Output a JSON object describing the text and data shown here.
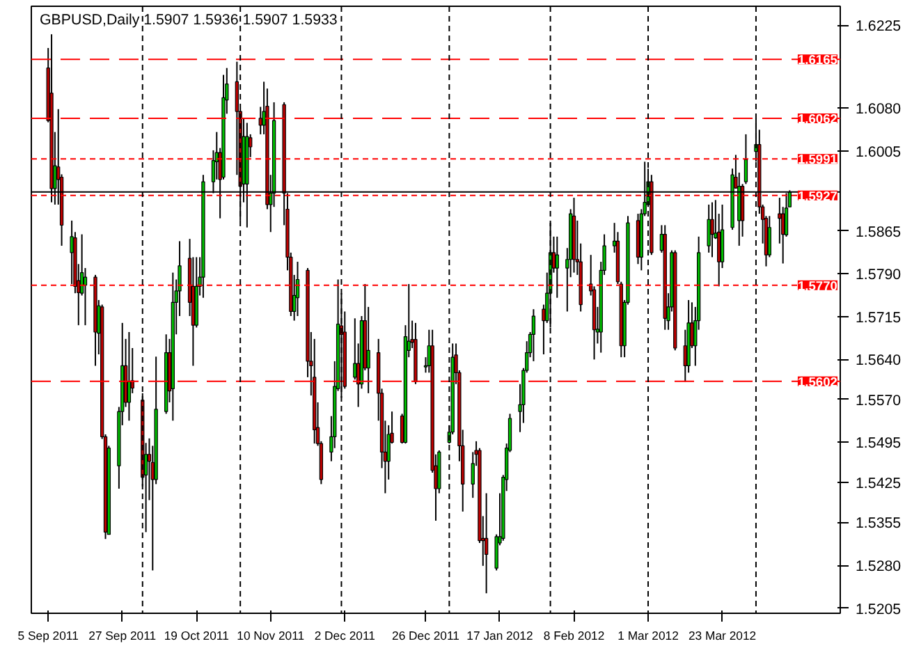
{
  "chart_data": {
    "type": "candlestick",
    "title": "GBPUSD,Daily  1.5907 1.5936 1.5907 1.5933",
    "x": [
      "2011-09-05",
      "2011-09-06",
      "2011-09-07",
      "2011-09-08",
      "2011-09-09",
      "2011-09-12",
      "2011-09-13",
      "2011-09-14",
      "2011-09-15",
      "2011-09-16",
      "2011-09-19",
      "2011-09-20",
      "2011-09-21",
      "2011-09-22",
      "2011-09-23",
      "2011-09-26",
      "2011-09-27",
      "2011-09-28",
      "2011-09-29",
      "2011-09-30",
      "2011-10-03",
      "2011-10-04",
      "2011-10-05",
      "2011-10-06",
      "2011-10-07",
      "2011-10-10",
      "2011-10-11",
      "2011-10-12",
      "2011-10-13",
      "2011-10-14",
      "2011-10-17",
      "2011-10-18",
      "2011-10-19",
      "2011-10-20",
      "2011-10-21",
      "2011-10-24",
      "2011-10-25",
      "2011-10-26",
      "2011-10-27",
      "2011-10-28",
      "2011-10-31",
      "2011-11-01",
      "2011-11-02",
      "2011-11-03",
      "2011-11-04",
      "2011-11-07",
      "2011-11-08",
      "2011-11-09",
      "2011-11-10",
      "2011-11-11",
      "2011-11-14",
      "2011-11-15",
      "2011-11-16",
      "2011-11-17",
      "2011-11-18",
      "2011-11-21",
      "2011-11-22",
      "2011-11-23",
      "2011-11-24",
      "2011-11-25",
      "2011-11-28",
      "2011-11-29",
      "2011-11-30",
      "2011-12-01",
      "2011-12-02",
      "2011-12-05",
      "2011-12-06",
      "2011-12-07",
      "2011-12-08",
      "2011-12-09",
      "2011-12-12",
      "2011-12-13",
      "2011-12-14",
      "2011-12-15",
      "2011-12-16",
      "2011-12-19",
      "2011-12-20",
      "2011-12-21",
      "2011-12-22",
      "2011-12-23",
      "2011-12-26",
      "2011-12-27",
      "2011-12-28",
      "2011-12-29",
      "2011-12-30",
      "2012-01-02",
      "2012-01-03",
      "2012-01-04",
      "2012-01-05",
      "2012-01-06",
      "2012-01-09",
      "2012-01-10",
      "2012-01-11",
      "2012-01-12",
      "2012-01-13",
      "2012-01-16",
      "2012-01-17",
      "2012-01-18",
      "2012-01-19",
      "2012-01-20",
      "2012-01-23",
      "2012-01-24",
      "2012-01-25",
      "2012-01-26",
      "2012-01-27",
      "2012-01-30",
      "2012-01-31",
      "2012-02-01",
      "2012-02-02",
      "2012-02-03",
      "2012-02-06",
      "2012-02-07",
      "2012-02-08",
      "2012-02-09",
      "2012-02-10",
      "2012-02-13",
      "2012-02-14",
      "2012-02-15",
      "2012-02-16",
      "2012-02-17",
      "2012-02-20",
      "2012-02-21",
      "2012-02-22",
      "2012-02-23",
      "2012-02-24",
      "2012-02-27",
      "2012-02-28",
      "2012-02-29",
      "2012-03-01",
      "2012-03-02",
      "2012-03-05",
      "2012-03-06",
      "2012-03-07",
      "2012-03-08",
      "2012-03-09",
      "2012-03-12",
      "2012-03-13",
      "2012-03-14",
      "2012-03-15",
      "2012-03-16",
      "2012-03-19",
      "2012-03-20",
      "2012-03-21",
      "2012-03-22",
      "2012-03-23",
      "2012-03-26",
      "2012-03-27",
      "2012-03-28",
      "2012-03-29",
      "2012-03-30",
      "2012-04-02",
      "2012-04-03",
      "2012-04-04",
      "2012-04-05",
      "2012-04-06",
      "2012-04-09",
      "2012-04-10",
      "2012-04-11",
      "2012-04-12"
    ],
    "ohlc": [
      [
        1.615,
        1.6185,
        1.6055,
        1.6058
      ],
      [
        1.6106,
        1.6209,
        1.5915,
        1.5939
      ],
      [
        1.5939,
        1.6038,
        1.5911,
        1.5979
      ],
      [
        1.5977,
        1.6078,
        1.5911,
        1.5955
      ],
      [
        1.5959,
        1.5964,
        1.5839,
        1.5875
      ],
      [
        1.5827,
        1.5883,
        1.5772,
        1.5855
      ],
      [
        1.5853,
        1.5863,
        1.5756,
        1.5768
      ],
      [
        1.5778,
        1.5807,
        1.57,
        1.5757
      ],
      [
        1.5756,
        1.5859,
        1.5752,
        1.5792
      ],
      [
        1.577,
        1.58,
        1.57,
        1.5784
      ],
      [
        1.5784,
        1.5788,
        1.5629,
        1.5688
      ],
      [
        1.5686,
        1.5744,
        1.5649,
        1.5734
      ],
      [
        1.5732,
        1.5736,
        1.5501,
        1.5505
      ],
      [
        1.5505,
        1.5509,
        1.5326,
        1.5338
      ],
      [
        1.5334,
        1.5489,
        1.5334,
        1.5485
      ],
      [
        1.5454,
        1.5557,
        1.5414,
        1.5549
      ],
      [
        1.5549,
        1.5704,
        1.5525,
        1.5629
      ],
      [
        1.5629,
        1.5676,
        1.5557,
        1.5565
      ],
      [
        1.5565,
        1.5688,
        1.5533,
        1.5601
      ],
      [
        1.5603,
        1.566,
        1.5581,
        1.559
      ],
      [
        1.5569,
        1.5581,
        1.5418,
        1.5434
      ],
      [
        1.5438,
        1.5494,
        1.5338,
        1.5474
      ],
      [
        1.5474,
        1.5502,
        1.5394,
        1.5462
      ],
      [
        1.546,
        1.5489,
        1.5271,
        1.543
      ],
      [
        1.543,
        1.5645,
        1.5422,
        1.5553
      ],
      [
        1.5549,
        1.5684,
        1.5545,
        1.5652
      ],
      [
        1.5652,
        1.5676,
        1.5565,
        1.5585
      ],
      [
        1.5589,
        1.5792,
        1.5533,
        1.574
      ],
      [
        1.574,
        1.578,
        1.5684,
        1.576
      ],
      [
        1.576,
        1.5847,
        1.5716,
        1.5804
      ],
      [
        1.5817,
        1.5851,
        1.5716,
        1.574
      ],
      [
        1.5768,
        1.5819,
        1.5629,
        1.57
      ],
      [
        1.57,
        1.5819,
        1.5696,
        1.5768
      ],
      [
        1.5768,
        1.5819,
        1.5752,
        1.5784
      ],
      [
        1.5784,
        1.5963,
        1.5748,
        1.5951
      ],
      [
        1.5951,
        1.6006,
        1.5931,
        1.5988
      ],
      [
        1.5986,
        1.6038,
        1.5955,
        1.6002
      ],
      [
        1.6002,
        1.601,
        1.5887,
        1.5955
      ],
      [
        1.5959,
        1.6138,
        1.5955,
        1.6098
      ],
      [
        1.6094,
        1.615,
        1.607,
        1.6122
      ],
      [
        1.6126,
        1.6161,
        1.5963,
        1.6074
      ],
      [
        1.6074,
        1.6078,
        1.5883,
        1.5943
      ],
      [
        1.5947,
        1.6062,
        1.5915,
        1.603
      ],
      [
        1.5947,
        1.6054,
        1.5871,
        1.603
      ],
      [
        1.6028,
        1.6034,
        1.5994,
        1.6012
      ],
      [
        1.6062,
        1.6082,
        1.6034,
        1.605
      ],
      [
        1.605,
        1.6126,
        1.6034,
        1.6074
      ],
      [
        1.6083,
        1.6114,
        1.5903,
        1.5911
      ],
      [
        1.5911,
        1.5963,
        1.5863,
        1.5931
      ],
      [
        1.5931,
        1.609,
        1.5907,
        1.6058
      ],
      [
        1.6086,
        1.609,
        1.5875,
        1.5931
      ],
      [
        1.5903,
        1.5931,
        1.5796,
        1.5819
      ],
      [
        1.5819,
        1.5827,
        1.5716,
        1.5724
      ],
      [
        1.5724,
        1.5788,
        1.5708,
        1.5752
      ],
      [
        1.5748,
        1.5811,
        1.5716,
        1.578
      ],
      [
        1.5796,
        1.58,
        1.5609,
        1.5637
      ],
      [
        1.5637,
        1.5688,
        1.5577,
        1.5629
      ],
      [
        1.5609,
        1.5676,
        1.5493,
        1.5517
      ],
      [
        1.5521,
        1.5565,
        1.5489,
        1.5493
      ],
      [
        1.5493,
        1.5497,
        1.5422,
        1.543
      ],
      [
        1.5478,
        1.5541,
        1.5462,
        1.5505
      ],
      [
        1.5505,
        1.5637,
        1.5485,
        1.5593
      ],
      [
        1.5589,
        1.578,
        1.5585,
        1.5702
      ],
      [
        1.5699,
        1.5756,
        1.5573,
        1.5684
      ],
      [
        1.5688,
        1.5724,
        1.5589,
        1.5593
      ],
      [
        1.5609,
        1.5712,
        1.5605,
        1.5633
      ],
      [
        1.5633,
        1.5668,
        1.5557,
        1.5597
      ],
      [
        1.5597,
        1.5716,
        1.5589,
        1.5708
      ],
      [
        1.5708,
        1.5772,
        1.5621,
        1.5625
      ],
      [
        1.5625,
        1.5732,
        1.5581,
        1.5656
      ],
      [
        1.5652,
        1.5676,
        1.5533,
        1.5581
      ],
      [
        1.5581,
        1.5589,
        1.545,
        1.5478
      ],
      [
        1.5478,
        1.5533,
        1.5406,
        1.5462
      ],
      [
        1.5462,
        1.5525,
        1.543,
        1.5509
      ],
      [
        1.5511,
        1.5549,
        1.5493,
        1.5495
      ],
      [
        1.5541,
        1.5545,
        1.5493,
        1.5495
      ],
      [
        1.5495,
        1.57,
        1.5493,
        1.568
      ],
      [
        1.5656,
        1.5772,
        1.5644,
        1.5672
      ],
      [
        1.5675,
        1.5708,
        1.566,
        1.567
      ],
      [
        1.5675,
        1.5704,
        1.5597,
        1.5601
      ],
      [
        1.5627,
        1.5644,
        1.5617,
        1.5629
      ],
      [
        1.5629,
        1.5692,
        1.5617,
        1.5664
      ],
      [
        1.5664,
        1.5692,
        1.5442,
        1.5446
      ],
      [
        1.5454,
        1.5474,
        1.5358,
        1.5414
      ],
      [
        1.5414,
        1.5481,
        1.5406,
        1.5478
      ],
      [
        1.5495,
        1.5525,
        1.5493,
        1.5513
      ],
      [
        1.5513,
        1.5668,
        1.5509,
        1.5644
      ],
      [
        1.5648,
        1.5668,
        1.5597,
        1.5617
      ],
      [
        1.5617,
        1.5621,
        1.5462,
        1.5489
      ],
      [
        1.5489,
        1.5517,
        1.5374,
        1.5422
      ],
      [
        1.5422,
        1.5478,
        1.5398,
        1.5458
      ],
      [
        1.5481,
        1.5497,
        1.5454,
        1.5474
      ],
      [
        1.5481,
        1.5485,
        1.5319,
        1.5323
      ],
      [
        1.5327,
        1.5366,
        1.5279,
        1.5323
      ],
      [
        1.5327,
        1.5406,
        1.5231,
        1.5299
      ],
      [
        1.5275,
        1.5334,
        1.5271,
        1.533
      ],
      [
        1.5319,
        1.5406,
        1.5315,
        1.533
      ],
      [
        1.5327,
        1.5438,
        1.5323,
        1.5434
      ],
      [
        1.543,
        1.5493,
        1.541,
        1.5485
      ],
      [
        1.5481,
        1.5545,
        1.5478,
        1.5537
      ],
      [
        1.5549,
        1.5597,
        1.5513,
        1.5561
      ],
      [
        1.5561,
        1.5625,
        1.5529,
        1.5621
      ],
      [
        1.5621,
        1.5672,
        1.5617,
        1.5652
      ],
      [
        1.5652,
        1.5688,
        1.5644,
        1.5684
      ],
      [
        1.5684,
        1.5728,
        1.5637,
        1.5716
      ],
      [
        1.5728,
        1.5736,
        1.5649,
        1.5708
      ],
      [
        1.5708,
        1.5792,
        1.5704,
        1.5756
      ],
      [
        1.5756,
        1.5879,
        1.5696,
        1.5827
      ],
      [
        1.5827,
        1.5855,
        1.5792,
        1.58
      ],
      [
        1.58,
        1.5855,
        1.5748,
        1.5823
      ],
      [
        1.58,
        1.5835,
        1.5724,
        1.5815
      ],
      [
        1.5815,
        1.5903,
        1.5784,
        1.5895
      ],
      [
        1.5891,
        1.5923,
        1.5792,
        1.5815
      ],
      [
        1.5815,
        1.5883,
        1.5788,
        1.5811
      ],
      [
        1.5811,
        1.5843,
        1.5724,
        1.5736
      ],
      [
        1.5772,
        1.5823,
        1.5752,
        1.576
      ],
      [
        1.5762,
        1.5768,
        1.564,
        1.5692
      ],
      [
        1.5688,
        1.5732,
        1.5668,
        1.5693
      ],
      [
        1.5688,
        1.5811,
        1.5652,
        1.5796
      ],
      [
        1.5796,
        1.5859,
        1.5788,
        1.5839
      ],
      [
        1.5839,
        1.5879,
        1.5827,
        1.5847
      ],
      [
        1.5847,
        1.5863,
        1.5772,
        1.5776
      ],
      [
        1.5772,
        1.5776,
        1.5644,
        1.5664
      ],
      [
        1.5664,
        1.5744,
        1.5644,
        1.574
      ],
      [
        1.574,
        1.5891,
        1.5736,
        1.5879
      ],
      [
        1.5883,
        1.5895,
        1.5807,
        1.5819
      ],
      [
        1.5819,
        1.5903,
        1.5796,
        1.5895
      ],
      [
        1.5895,
        1.5986,
        1.5891,
        1.5915
      ],
      [
        1.5911,
        1.5974,
        1.5907,
        1.5951
      ],
      [
        1.5951,
        1.5963,
        1.5823,
        1.5827
      ],
      [
        1.5831,
        1.5875,
        1.5827,
        1.5859
      ],
      [
        1.5859,
        1.5875,
        1.5692,
        1.5712
      ],
      [
        1.5708,
        1.5756,
        1.5692,
        1.5732
      ],
      [
        1.5732,
        1.5831,
        1.5724,
        1.5827
      ],
      [
        1.5827,
        1.5831,
        1.5656,
        1.566
      ],
      [
        1.5664,
        1.5692,
        1.5601,
        1.5629
      ],
      [
        1.5629,
        1.5744,
        1.5617,
        1.5704
      ],
      [
        1.5704,
        1.574,
        1.566,
        1.5664
      ],
      [
        1.5664,
        1.5732,
        1.5629,
        1.5708
      ],
      [
        1.5708,
        1.5855,
        1.5692,
        1.5827
      ],
      [
        1.5839,
        1.5911,
        1.5827,
        1.5885
      ],
      [
        1.5885,
        1.5915,
        1.5819,
        1.5859
      ],
      [
        1.5853,
        1.5919,
        1.5851,
        1.5861
      ],
      [
        1.5863,
        1.5895,
        1.5768,
        1.5811
      ],
      [
        1.5811,
        1.5911,
        1.58,
        1.5867
      ],
      [
        1.5871,
        1.5974,
        1.5867,
        1.5963
      ],
      [
        1.5959,
        1.5998,
        1.5939,
        1.594
      ],
      [
        1.5883,
        1.5967,
        1.5839,
        1.5943
      ],
      [
        1.5943,
        1.5947,
        1.5855,
        1.5883
      ],
      [
        1.5951,
        1.6034,
        1.5947,
        1.599
      ],
      [
        1.6004,
        1.6062,
        1.5986,
        1.6016
      ],
      [
        1.6016,
        1.6042,
        1.5895,
        1.5907
      ],
      [
        1.5907,
        1.5911,
        1.5843,
        1.5885
      ],
      [
        1.5887,
        1.5891,
        1.5803,
        1.5823
      ],
      [
        1.5823,
        1.5891,
        1.5819,
        1.5871
      ],
      [
        1.5895,
        1.5923,
        1.5843,
        1.5887
      ],
      [
        1.5895,
        1.5907,
        1.5808,
        1.5859
      ],
      [
        1.5858,
        1.5931,
        1.5855,
        1.5905
      ],
      [
        1.5907,
        1.5936,
        1.5907,
        1.5933
      ]
    ],
    "colors": [
      "#c00000",
      "#c00000",
      "#00c000",
      "#c00000",
      "#c00000",
      "#00c000",
      "#c00000",
      "#c00000",
      "#00c000",
      "#00c000",
      "#c00000",
      "#00c000",
      "#c00000",
      "#c00000",
      "#00c000",
      "#00c000",
      "#00c000",
      "#c00000",
      "#00c000",
      "#c00000",
      "#c00000",
      "#00c000",
      "#c00000",
      "#c00000",
      "#00c000",
      "#00c000",
      "#c00000",
      "#00c000",
      "#00c000",
      "#00c000",
      "#c00000",
      "#c00000",
      "#00c000",
      "#00c000",
      "#00c000",
      "#00c000",
      "#00c000",
      "#c00000",
      "#00c000",
      "#00c000",
      "#c00000",
      "#c00000",
      "#00c000",
      "#00c000",
      "#c00000",
      "#c00000",
      "#00c000",
      "#c00000",
      "#00c000",
      "#00c000",
      "#c00000",
      "#c00000",
      "#c00000",
      "#00c000",
      "#00c000",
      "#c00000",
      "#c00000",
      "#c00000",
      "#c00000",
      "#c00000",
      "#00c000",
      "#00c000",
      "#00c000",
      "#c00000",
      "#c00000",
      "#00c000",
      "#c00000",
      "#00c000",
      "#c00000",
      "#00c000",
      "#c00000",
      "#c00000",
      "#c00000",
      "#00c000",
      "#c00000",
      "#c00000",
      "#00c000",
      "#00c000",
      "#c00000",
      "#c00000",
      "#00c000",
      "#00c000",
      "#c00000",
      "#c00000",
      "#00c000",
      "#00c000",
      "#00c000",
      "#c00000",
      "#c00000",
      "#c00000",
      "#00c000",
      "#c00000",
      "#c00000",
      "#c00000",
      "#c00000",
      "#00c000",
      "#00c000",
      "#00c000",
      "#00c000",
      "#00c000",
      "#00c000",
      "#00c000",
      "#00c000",
      "#00c000",
      "#00c000",
      "#c00000",
      "#00c000",
      "#00c000",
      "#c00000",
      "#00c000",
      "#00c000",
      "#00c000",
      "#c00000",
      "#c00000",
      "#c00000",
      "#c00000",
      "#c00000",
      "#00c000",
      "#00c000",
      "#00c000",
      "#00c000",
      "#c00000",
      "#c00000",
      "#00c000",
      "#00c000",
      "#c00000",
      "#00c000",
      "#00c000",
      "#00c000",
      "#c00000",
      "#00c000",
      "#c00000",
      "#00c000",
      "#00c000",
      "#c00000",
      "#c00000",
      "#00c000",
      "#c00000",
      "#00c000",
      "#00c000",
      "#00c000",
      "#c00000",
      "#00c000",
      "#c00000",
      "#00c000",
      "#00c000",
      "#c00000",
      "#00c000",
      "#c00000",
      "#00c000",
      "#00c000",
      "#c00000",
      "#c00000",
      "#c00000",
      "#00c000",
      "#c00000",
      "#c00000",
      "#00c000",
      "#00c000"
    ],
    "ylim": [
      1.5196,
      1.6258
    ],
    "xlim": [
      "2011-08-31",
      "2012-04-27"
    ],
    "yticks": [
      1.6225,
      {
        "value": 1.608,
        "label": "1.6080"
      },
      1.6005,
      1.5865,
      {
        "value": 1.579,
        "label": "1.5790"
      },
      1.5715,
      {
        "value": 1.564,
        "label": "1.5640"
      },
      {
        "value": 1.557,
        "label": "1.5570"
      },
      1.5495,
      1.5425,
      1.5355,
      {
        "value": 1.528,
        "label": "1.5280"
      },
      1.5205
    ],
    "xticks": [
      {
        "value": "2011-09-05",
        "label": "5 Sep 2011"
      },
      {
        "value": "2011-09-27",
        "label": "27 Sep 2011"
      },
      {
        "value": "2011-10-19",
        "label": "19 Oct 2011"
      },
      {
        "value": "2011-11-10",
        "label": "10 Nov 2011"
      },
      {
        "value": "2011-12-02",
        "label": "2 Dec 2011"
      },
      {
        "value": "2011-12-26",
        "label": "26 Dec 2011"
      },
      {
        "value": "2012-01-17",
        "label": "17 Jan 2012"
      },
      {
        "value": "2012-02-08",
        "label": "8 Feb 2012"
      },
      {
        "value": "2012-03-01",
        "label": "1 Mar 2012"
      },
      {
        "value": "2012-03-23",
        "label": "23 Mar 2012"
      }
    ],
    "ref_lines": [
      {
        "axis": "y",
        "value": 1.6165,
        "label": "1.6165",
        "color": "#ff0000",
        "line_style": "dashed"
      },
      {
        "axis": "y",
        "value": 1.6062,
        "label": "1.6062",
        "color": "#ff0000",
        "line_style": "dashed"
      },
      {
        "axis": "y",
        "value": 1.5991,
        "label": "1.5991",
        "color": "#ff0000",
        "line_style": "dotted"
      },
      {
        "axis": "y",
        "value": 1.5933,
        "label": null,
        "color": "#000000",
        "line_style": "solid"
      },
      {
        "axis": "y",
        "value": 1.5927,
        "label": "1.5927",
        "color": "#ff0000",
        "line_style": "dotted"
      },
      {
        "axis": "y",
        "value": 1.577,
        "label": "1.5770",
        "color": "#ff0000",
        "line_style": "dotted"
      },
      {
        "axis": "y",
        "value": 1.5602,
        "label": "1.5602",
        "color": "#ff0000",
        "line_style": "dashed"
      },
      {
        "axis": "x",
        "value": "2011-10-03",
        "label": null,
        "color": "#000000",
        "line_style": "dotted"
      },
      {
        "axis": "x",
        "value": "2011-11-01",
        "label": null,
        "color": "#000000",
        "line_style": "dotted"
      },
      {
        "axis": "x",
        "value": "2011-12-01",
        "label": null,
        "color": "#000000",
        "line_style": "dotted"
      },
      {
        "axis": "x",
        "value": "2012-01-02",
        "label": null,
        "color": "#000000",
        "line_style": "dotted"
      },
      {
        "axis": "x",
        "value": "2012-02-01",
        "label": null,
        "color": "#000000",
        "line_style": "dotted"
      },
      {
        "axis": "x",
        "value": "2012-03-01",
        "label": null,
        "color": "#000000",
        "line_style": "dotted"
      },
      {
        "axis": "x",
        "value": "2012-04-02",
        "label": null,
        "color": "#000000",
        "line_style": "dotted"
      }
    ]
  }
}
